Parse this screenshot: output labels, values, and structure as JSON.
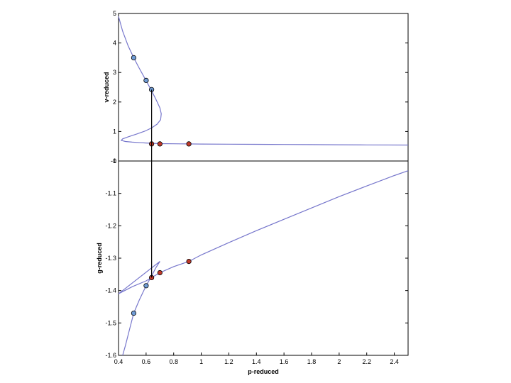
{
  "chart_data": [
    {
      "type": "line",
      "id": "top",
      "ylabel": "v-reduced",
      "xlim": [
        0.4,
        2.5
      ],
      "ylim": [
        0,
        5
      ],
      "yticks": [
        0,
        1,
        2,
        3,
        4,
        5
      ],
      "ytick_labels": [
        "0",
        "1",
        "2",
        "3",
        "4",
        "5"
      ],
      "series": [
        {
          "color": "#7777cc",
          "points": [
            [
              0.4,
              4.9
            ],
            [
              0.43,
              4.4
            ],
            [
              0.47,
              3.9
            ],
            [
              0.51,
              3.5
            ],
            [
              0.55,
              3.15
            ],
            [
              0.6,
              2.72
            ],
            [
              0.635,
              2.42
            ],
            [
              0.67,
              2.1
            ],
            [
              0.7,
              1.8
            ],
            [
              0.71,
              1.6
            ],
            [
              0.705,
              1.4
            ],
            [
              0.68,
              1.25
            ],
            [
              0.64,
              1.12
            ],
            [
              0.59,
              1.01
            ],
            [
              0.53,
              0.91
            ],
            [
              0.47,
              0.82
            ],
            [
              0.43,
              0.75
            ],
            [
              0.42,
              0.7
            ],
            [
              0.45,
              0.66
            ],
            [
              0.5,
              0.64
            ],
            [
              0.56,
              0.62
            ],
            [
              0.6,
              0.61
            ],
            [
              0.64,
              0.6
            ],
            [
              0.7,
              0.59
            ],
            [
              0.8,
              0.585
            ],
            [
              0.9,
              0.58
            ],
            [
              1.0,
              0.575
            ],
            [
              1.2,
              0.57
            ],
            [
              1.4,
              0.565
            ],
            [
              1.6,
              0.56
            ],
            [
              1.8,
              0.555
            ],
            [
              2.0,
              0.55
            ],
            [
              2.2,
              0.545
            ],
            [
              2.5,
              0.54
            ]
          ]
        }
      ],
      "markers": [
        {
          "x": 0.51,
          "y": 3.5,
          "color": "#6f9bd5"
        },
        {
          "x": 0.6,
          "y": 2.73,
          "color": "#6f9bd5"
        },
        {
          "x": 0.64,
          "y": 2.42,
          "color": "#6f9bd5"
        },
        {
          "x": 0.64,
          "y": 0.58,
          "color": "#c0392b"
        },
        {
          "x": 0.7,
          "y": 0.58,
          "color": "#c0392b"
        },
        {
          "x": 0.91,
          "y": 0.58,
          "color": "#c0392b"
        }
      ]
    },
    {
      "type": "line",
      "id": "bottom",
      "ylabel": "g-reduced",
      "xlabel": "p-reduced",
      "xlim": [
        0.4,
        2.5
      ],
      "ylim": [
        -1.6,
        -1.0
      ],
      "yticks": [
        -1.6,
        -1.5,
        -1.4,
        -1.3,
        -1.2,
        -1.1,
        -1.0
      ],
      "ytick_labels": [
        "-1.6",
        "-1.5",
        "-1.4",
        "-1.3",
        "-1.2",
        "-1.1",
        "-1"
      ],
      "xticks": [
        0.4,
        0.6,
        0.8,
        1.0,
        1.2,
        1.4,
        1.6,
        1.8,
        2.0,
        2.2,
        2.4
      ],
      "xtick_labels": [
        "0.4",
        "0.6",
        "0.8",
        "1",
        "1.2",
        "1.4",
        "1.6",
        "1.8",
        "2",
        "2.2",
        "2.4"
      ],
      "series": [
        {
          "color": "#7777cc",
          "points": [
            [
              0.43,
              -1.6
            ],
            [
              0.45,
              -1.57
            ],
            [
              0.48,
              -1.52
            ],
            [
              0.51,
              -1.47
            ],
            [
              0.55,
              -1.43
            ],
            [
              0.6,
              -1.385
            ],
            [
              0.64,
              -1.355
            ],
            [
              0.67,
              -1.33
            ],
            [
              0.7,
              -1.31
            ]
          ]
        },
        {
          "color": "#7777cc",
          "points": [
            [
              0.7,
              -1.31
            ],
            [
              0.4,
              -1.41
            ]
          ]
        },
        {
          "color": "#7777cc",
          "points": [
            [
              0.4,
              -1.41
            ],
            [
              0.5,
              -1.388
            ],
            [
              0.6,
              -1.37
            ],
            [
              0.64,
              -1.36
            ],
            [
              0.7,
              -1.345
            ],
            [
              0.8,
              -1.326
            ],
            [
              0.91,
              -1.31
            ],
            [
              1.0,
              -1.29
            ],
            [
              1.2,
              -1.252
            ],
            [
              1.4,
              -1.215
            ],
            [
              1.6,
              -1.18
            ],
            [
              1.8,
              -1.145
            ],
            [
              2.0,
              -1.11
            ],
            [
              2.2,
              -1.077
            ],
            [
              2.4,
              -1.045
            ],
            [
              2.5,
              -1.03
            ]
          ]
        }
      ],
      "markers": [
        {
          "x": 0.51,
          "y": -1.47,
          "color": "#6f9bd5"
        },
        {
          "x": 0.6,
          "y": -1.385,
          "color": "#6f9bd5"
        },
        {
          "x": 0.64,
          "y": -1.36,
          "color": "#c0392b"
        },
        {
          "x": 0.7,
          "y": -1.345,
          "color": "#c0392b"
        },
        {
          "x": 0.91,
          "y": -1.31,
          "color": "#c0392b"
        }
      ]
    }
  ],
  "maxwell_line": {
    "x": 0.64,
    "top_y_from": 0.58,
    "top_y_to": 2.42,
    "bottom_y": -1.36,
    "color": "#000000"
  }
}
